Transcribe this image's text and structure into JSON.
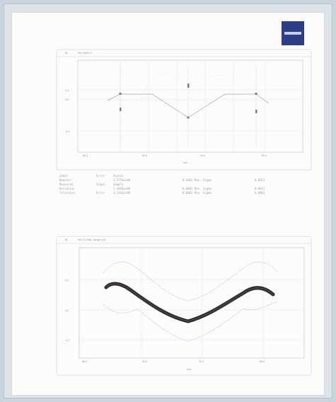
{
  "document": {
    "brand": {
      "logo_icon": "zeiss-logo-icon",
      "logo_color": "#2b3d87"
    }
  },
  "chart_data": [
    {
      "type": "line",
      "title": "",
      "xlabel": "",
      "ylabel": "",
      "x": [],
      "series": []
    },
    {
      "type": "scatter",
      "title": "",
      "xlabel": "",
      "ylabel": "",
      "x": [],
      "series": []
    }
  ],
  "colors": {
    "page": "#fcfcfb",
    "background": "#c9d3dc",
    "plot_frame": "#aaaaaa",
    "trace": "#2a2a2a",
    "tolerance": "#9aa7c8"
  }
}
